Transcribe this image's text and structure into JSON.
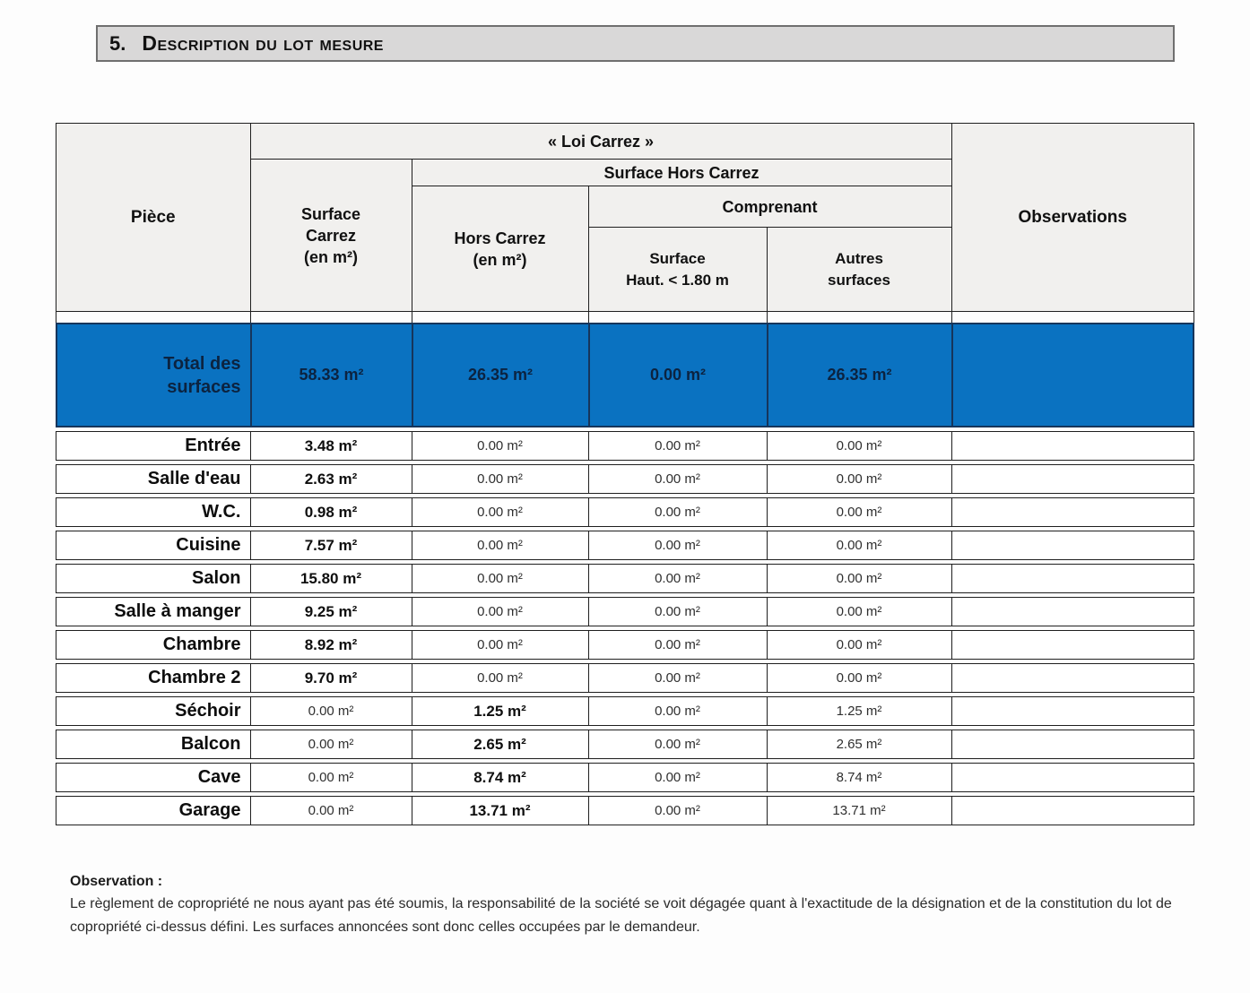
{
  "header_bar": {
    "number": "5.",
    "title": "Description du lot mesure"
  },
  "table": {
    "headers": {
      "piece": "Pièce",
      "loi_carrez": "« Loi Carrez »",
      "surface_carrez": "Surface\nCarrez\n(en m²)",
      "surface_hors_carrez": "Surface Hors Carrez",
      "hors_carrez": "Hors Carrez\n(en m²)",
      "comprenant": "Comprenant",
      "surface_haut": "Surface\nHaut. < 1.80 m",
      "autres_surfaces": "Autres\nsurfaces",
      "observations": "Observations"
    },
    "total": {
      "label": "Total des\nsurfaces",
      "sc": "58.33 m²",
      "hc": "26.35 m²",
      "sh": "0.00 m²",
      "as": "26.35 m²",
      "obs": ""
    },
    "rows": [
      {
        "piece": "Entrée",
        "sc": "3.48 m²",
        "sc_w": "bold",
        "hc": "0.00 m²",
        "hc_w": "reg",
        "sh": "0.00 m²",
        "sh_w": "reg",
        "as": "0.00 m²",
        "as_w": "reg",
        "obs": ""
      },
      {
        "piece": "Salle d'eau",
        "sc": "2.63 m²",
        "sc_w": "bold",
        "hc": "0.00 m²",
        "hc_w": "reg",
        "sh": "0.00 m²",
        "sh_w": "reg",
        "as": "0.00 m²",
        "as_w": "reg",
        "obs": ""
      },
      {
        "piece": "W.C.",
        "sc": "0.98 m²",
        "sc_w": "bold",
        "hc": "0.00 m²",
        "hc_w": "reg",
        "sh": "0.00 m²",
        "sh_w": "reg",
        "as": "0.00 m²",
        "as_w": "reg",
        "obs": ""
      },
      {
        "piece": "Cuisine",
        "sc": "7.57 m²",
        "sc_w": "bold",
        "hc": "0.00 m²",
        "hc_w": "reg",
        "sh": "0.00 m²",
        "sh_w": "reg",
        "as": "0.00 m²",
        "as_w": "reg",
        "obs": ""
      },
      {
        "piece": "Salon",
        "sc": "15.80 m²",
        "sc_w": "bold",
        "hc": "0.00 m²",
        "hc_w": "reg",
        "sh": "0.00 m²",
        "sh_w": "reg",
        "as": "0.00 m²",
        "as_w": "reg",
        "obs": ""
      },
      {
        "piece": "Salle à manger",
        "sc": "9.25 m²",
        "sc_w": "bold",
        "hc": "0.00 m²",
        "hc_w": "reg",
        "sh": "0.00 m²",
        "sh_w": "reg",
        "as": "0.00 m²",
        "as_w": "reg",
        "obs": ""
      },
      {
        "piece": "Chambre",
        "sc": "8.92 m²",
        "sc_w": "bold",
        "hc": "0.00 m²",
        "hc_w": "reg",
        "sh": "0.00 m²",
        "sh_w": "reg",
        "as": "0.00 m²",
        "as_w": "reg",
        "obs": ""
      },
      {
        "piece": "Chambre 2",
        "sc": "9.70 m²",
        "sc_w": "bold",
        "hc": "0.00 m²",
        "hc_w": "reg",
        "sh": "0.00 m²",
        "sh_w": "reg",
        "as": "0.00 m²",
        "as_w": "reg",
        "obs": ""
      },
      {
        "piece": "Séchoir",
        "sc": "0.00 m²",
        "sc_w": "reg",
        "hc": "1.25 m²",
        "hc_w": "bold",
        "sh": "0.00 m²",
        "sh_w": "reg",
        "as": "1.25 m²",
        "as_w": "reg",
        "obs": ""
      },
      {
        "piece": "Balcon",
        "sc": "0.00 m²",
        "sc_w": "reg",
        "hc": "2.65 m²",
        "hc_w": "bold",
        "sh": "0.00 m²",
        "sh_w": "reg",
        "as": "2.65 m²",
        "as_w": "reg",
        "obs": ""
      },
      {
        "piece": "Cave",
        "sc": "0.00 m²",
        "sc_w": "reg",
        "hc": "8.74 m²",
        "hc_w": "bold",
        "sh": "0.00 m²",
        "sh_w": "reg",
        "as": "8.74 m²",
        "as_w": "reg",
        "obs": ""
      },
      {
        "piece": "Garage",
        "sc": "0.00 m²",
        "sc_w": "reg",
        "hc": "13.71 m²",
        "hc_w": "bold",
        "sh": "0.00 m²",
        "sh_w": "reg",
        "as": "13.71 m²",
        "as_w": "reg",
        "obs": ""
      }
    ]
  },
  "footer": {
    "heading": "Observation :",
    "text": "Le règlement de copropriété ne nous ayant pas été soumis, la responsabilité de la société se voit dégagée quant à l'exactitude de la désignation et de la constitution du lot de copropriété ci-dessus défini. Les surfaces annoncées sont donc celles occupées par le demandeur."
  },
  "colors": {
    "accent-blue": "#0a72c1",
    "blue-border": "#16355b",
    "blue-text": "#0c2340",
    "header-bg": "#f1f0ee",
    "titlebar-bg": "#d9d8d8",
    "titlebar-border": "#6f6f6f",
    "line": "#1f1f1f"
  }
}
